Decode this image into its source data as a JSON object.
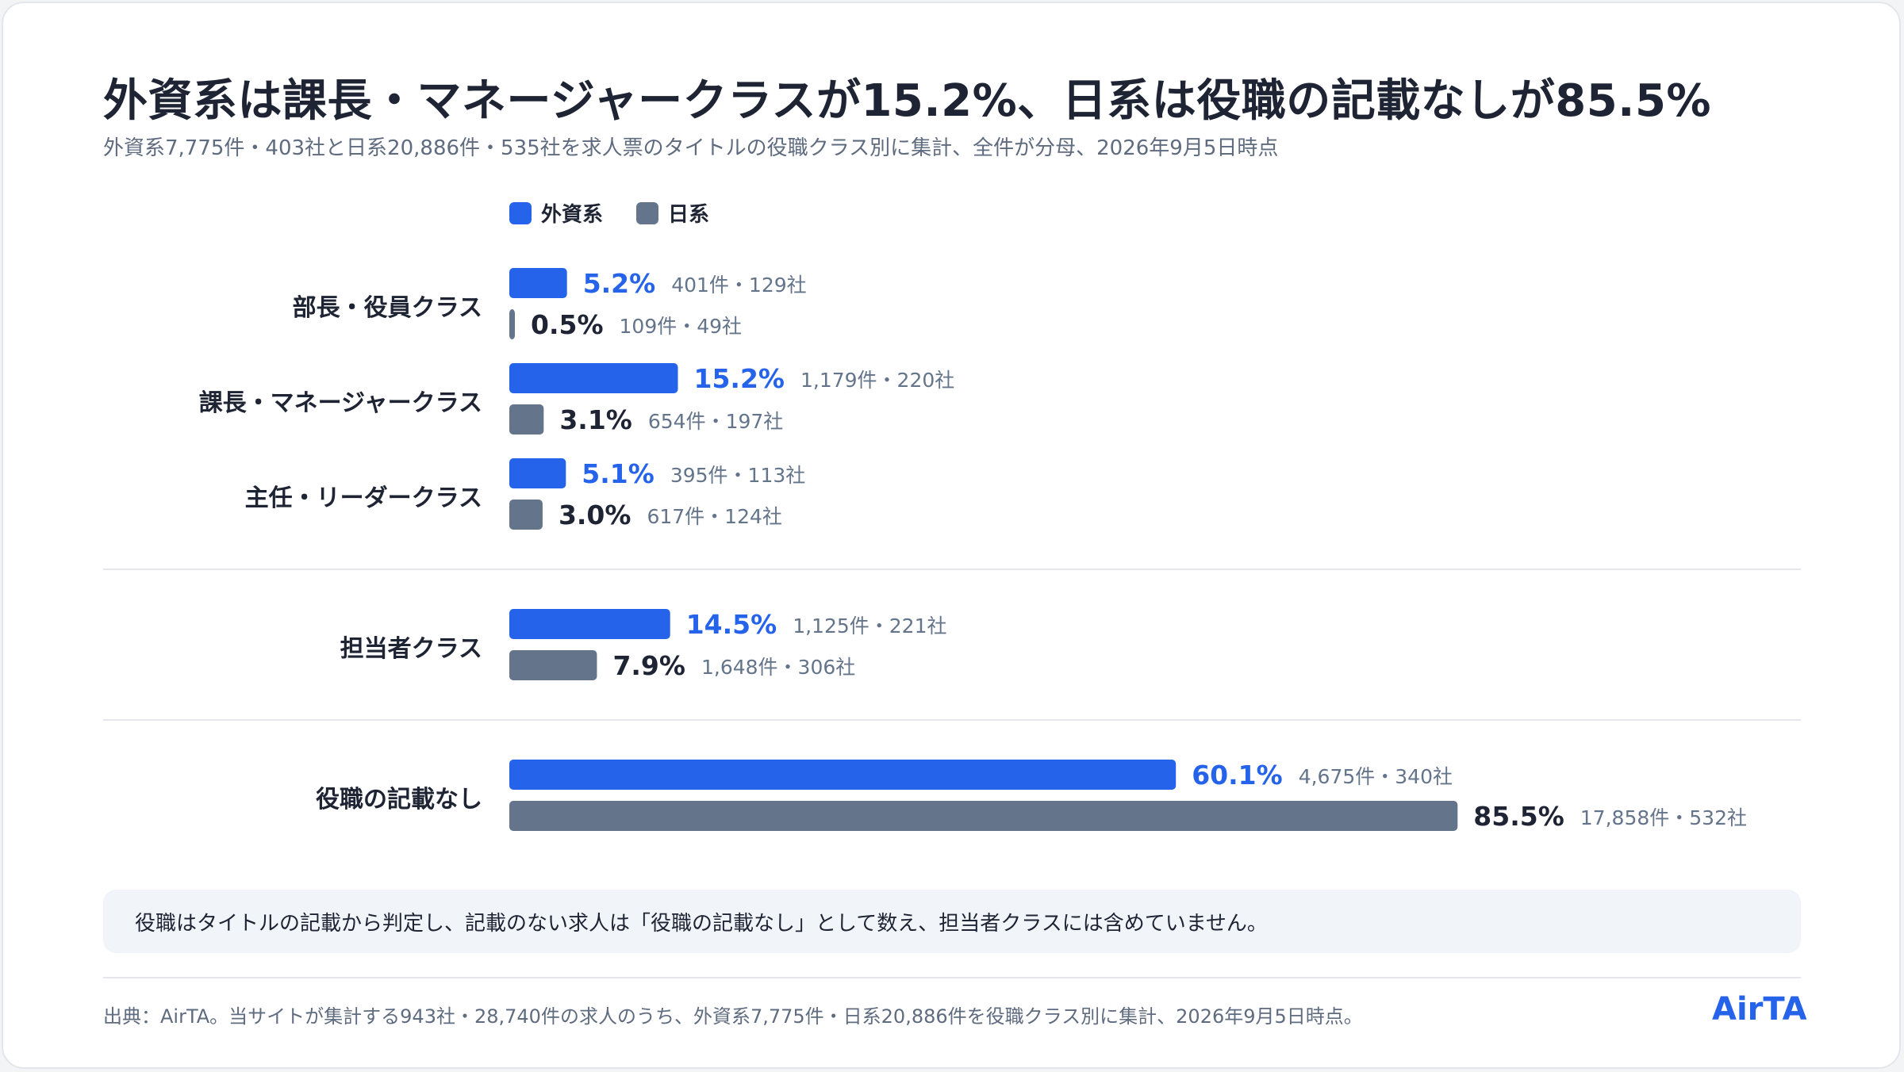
{
  "header": {
    "title": "外資系は課長・マネージャークラスが15.2%、日系は役職の記載なしが85.5%",
    "subtitle": "外資系7,775件・403社と日系20,886件・535社を求人票のタイトルの役職クラス別に集計、全件が分母、2026年9月5日時点"
  },
  "colors": {
    "foreign": "#2563eb",
    "japanese": "#64748b",
    "category_text": "#1e2433",
    "detail_text": "#64748b"
  },
  "chart_data": {
    "type": "bar",
    "orientation": "horizontal",
    "unit": "%",
    "xlim": [
      0,
      100
    ],
    "grid": false,
    "legend_position": "top-left",
    "categories": [
      "部長・役員クラス",
      "課長・マネージャークラス",
      "主任・リーダークラス",
      "担当者クラス",
      "役職の記載なし"
    ],
    "series": [
      {
        "name": "外資系",
        "values": [
          5.2,
          15.2,
          5.1,
          14.5,
          60.1
        ],
        "labels": [
          "5.2%",
          "15.2%",
          "5.1%",
          "14.5%",
          "60.1%"
        ],
        "details": [
          "401件・129社",
          "1,179件・220社",
          "395件・113社",
          "1,125件・221社",
          "4,675件・340社"
        ]
      },
      {
        "name": "日系",
        "values": [
          0.5,
          3.1,
          3.0,
          7.9,
          85.5
        ],
        "labels": [
          "0.5%",
          "3.1%",
          "3.0%",
          "7.9%",
          "85.5%"
        ],
        "details": [
          "109件・49社",
          "654件・197社",
          "617件・124社",
          "1,648件・306社",
          "17,858件・532社"
        ]
      }
    ]
  },
  "note": "役職はタイトルの記載から判定し、記載のない求人は「役職の記載なし」として数え、担当者クラスには含めていません。",
  "footer": {
    "source": "出典：AirTA。当サイトが集計する943社・28,740件の求人のうち、外資系7,775件・日系20,886件を役職クラス別に集計、2026年9月5日時点。",
    "brand": "AirTA"
  }
}
